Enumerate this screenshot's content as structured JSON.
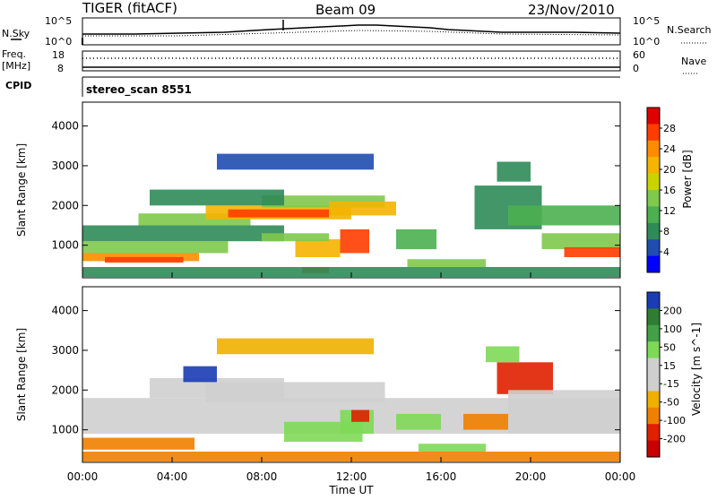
{
  "header": {
    "title": "TIGER (fitACF)",
    "beam": "Beam 09",
    "date": "23/Nov/2010"
  },
  "noise_panel": {
    "left_label": "N.Sky",
    "right_label": "N.Search",
    "left_ticks": [
      "10^5",
      "10^0"
    ],
    "right_ticks": [
      "10^5",
      "10^0"
    ]
  },
  "freq_panel": {
    "left_label_line1": "Freq.",
    "left_label_line2": "[MHz]",
    "right_label": "Nave",
    "left_ticks": [
      "18",
      "8"
    ],
    "right_ticks": [
      "60",
      "0"
    ]
  },
  "cpid_panel": {
    "label": "CPID",
    "program": "stereo_scan 8551"
  },
  "chart_data": [
    {
      "type": "heatmap",
      "name": "power",
      "ylabel": "Slant Range [km]",
      "yticks": [
        1000,
        2000,
        3000,
        4000
      ],
      "ylim": [
        180,
        4600
      ],
      "xlim": [
        0,
        24
      ],
      "colorbar": {
        "label": "Power [dB]",
        "ticks": [
          "4",
          "8",
          "12",
          "16",
          "20",
          "24",
          "28"
        ],
        "colors": [
          "#0000ff",
          "#1f4db0",
          "#2e8b57",
          "#4caf50",
          "#7fc94d",
          "#c8d400",
          "#f5b400",
          "#ff8c00",
          "#ff3d00",
          "#e00000"
        ]
      },
      "bands": [
        {
          "x0": 0.0,
          "x1": 5.2,
          "y0": 600,
          "y1": 800,
          "v": 24
        },
        {
          "x0": 1.0,
          "x1": 4.5,
          "y0": 560,
          "y1": 700,
          "v": 28
        },
        {
          "x0": 0.0,
          "x1": 6.5,
          "y0": 800,
          "y1": 1100,
          "v": 14
        },
        {
          "x0": 0.0,
          "x1": 9.0,
          "y0": 1100,
          "y1": 1500,
          "v": 10
        },
        {
          "x0": 2.5,
          "x1": 7.5,
          "y0": 1500,
          "y1": 1800,
          "v": 16
        },
        {
          "x0": 5.5,
          "x1": 12.0,
          "y0": 1650,
          "y1": 2000,
          "v": 22
        },
        {
          "x0": 6.5,
          "x1": 11.0,
          "y0": 1700,
          "y1": 1900,
          "v": 26
        },
        {
          "x0": 8.0,
          "x1": 13.5,
          "y0": 1950,
          "y1": 2250,
          "v": 14
        },
        {
          "x0": 11.0,
          "x1": 14.0,
          "y0": 1750,
          "y1": 2100,
          "v": 20
        },
        {
          "x0": 3.0,
          "x1": 9.0,
          "y0": 2000,
          "y1": 2400,
          "v": 8
        },
        {
          "x0": 9.5,
          "x1": 11.5,
          "y0": 700,
          "y1": 1150,
          "v": 22
        },
        {
          "x0": 11.5,
          "x1": 12.8,
          "y0": 800,
          "y1": 1400,
          "v": 27
        },
        {
          "x0": 9.8,
          "x1": 11.0,
          "y0": 300,
          "y1": 450,
          "v": 26
        },
        {
          "x0": 8.0,
          "x1": 11.0,
          "y0": 1100,
          "y1": 1300,
          "v": 16
        },
        {
          "x0": 14.0,
          "x1": 15.8,
          "y0": 900,
          "y1": 1400,
          "v": 12
        },
        {
          "x0": 14.5,
          "x1": 18.0,
          "y0": 450,
          "y1": 650,
          "v": 16
        },
        {
          "x0": 6.0,
          "x1": 13.0,
          "y0": 2900,
          "y1": 3300,
          "v": 6
        },
        {
          "x0": 17.5,
          "x1": 20.5,
          "y0": 1400,
          "y1": 2500,
          "v": 10
        },
        {
          "x0": 19.0,
          "x1": 24.0,
          "y0": 1500,
          "y1": 2000,
          "v": 12
        },
        {
          "x0": 20.5,
          "x1": 24.0,
          "y0": 900,
          "y1": 1300,
          "v": 16
        },
        {
          "x0": 21.5,
          "x1": 24.0,
          "y0": 700,
          "y1": 950,
          "v": 26
        },
        {
          "x0": 18.5,
          "x1": 20.0,
          "y0": 2600,
          "y1": 3100,
          "v": 8
        },
        {
          "x0": 0.0,
          "x1": 24.0,
          "y0": 200,
          "y1": 450,
          "v": 10
        }
      ]
    },
    {
      "type": "heatmap",
      "name": "velocity",
      "ylabel": "Slant Range [km]",
      "yticks": [
        1000,
        2000,
        3000,
        4000
      ],
      "ylim": [
        180,
        4600
      ],
      "xlim": [
        0,
        24
      ],
      "xlabel": "Time UT",
      "xticks": [
        "00:00",
        "04:00",
        "08:00",
        "12:00",
        "16:00",
        "20:00",
        "00:00"
      ],
      "colorbar": {
        "label": "Velocity [m s^-1]",
        "ticks": [
          "200",
          "100",
          "50",
          "15",
          "-15",
          "-50",
          "-100",
          "-200"
        ],
        "colors": [
          "#1a3cb4",
          "#2e7d32",
          "#43a047",
          "#7ed957",
          "#cfcfcf",
          "#cfcfcf",
          "#f0b000",
          "#f08000",
          "#e02000",
          "#c80000"
        ]
      },
      "bands": [
        {
          "x0": 0.0,
          "x1": 24.0,
          "y0": 900,
          "y1": 1800,
          "v": 0
        },
        {
          "x0": 3.0,
          "x1": 9.0,
          "y0": 1800,
          "y1": 2300,
          "v": 0
        },
        {
          "x0": 5.5,
          "x1": 13.5,
          "y0": 1700,
          "y1": 2200,
          "v": 0
        },
        {
          "x0": 9.0,
          "x1": 12.5,
          "y0": 700,
          "y1": 1200,
          "v": 60
        },
        {
          "x0": 11.5,
          "x1": 13.0,
          "y0": 900,
          "y1": 1500,
          "v": 40
        },
        {
          "x0": 14.0,
          "x1": 16.0,
          "y0": 1000,
          "y1": 1400,
          "v": 45
        },
        {
          "x0": 15.0,
          "x1": 18.0,
          "y0": 450,
          "y1": 650,
          "v": 55
        },
        {
          "x0": 0.0,
          "x1": 5.0,
          "y0": 500,
          "y1": 800,
          "v": -60
        },
        {
          "x0": 0.0,
          "x1": 24.0,
          "y0": 200,
          "y1": 450,
          "v": -80
        },
        {
          "x0": 4.5,
          "x1": 6.0,
          "y0": 2200,
          "y1": 2600,
          "v": 150
        },
        {
          "x0": 18.5,
          "x1": 21.0,
          "y0": 1900,
          "y1": 2700,
          "v": -150
        },
        {
          "x0": 19.0,
          "x1": 24.0,
          "y0": 900,
          "y1": 2000,
          "v": 0
        },
        {
          "x0": 18.0,
          "x1": 19.5,
          "y0": 2700,
          "y1": 3100,
          "v": 40
        },
        {
          "x0": 17.0,
          "x1": 19.0,
          "y0": 1000,
          "y1": 1400,
          "v": -60
        },
        {
          "x0": 6.0,
          "x1": 13.0,
          "y0": 2900,
          "y1": 3300,
          "v": -40
        },
        {
          "x0": 12.0,
          "x1": 12.8,
          "y0": 1200,
          "y1": 1500,
          "v": -150
        }
      ]
    }
  ]
}
